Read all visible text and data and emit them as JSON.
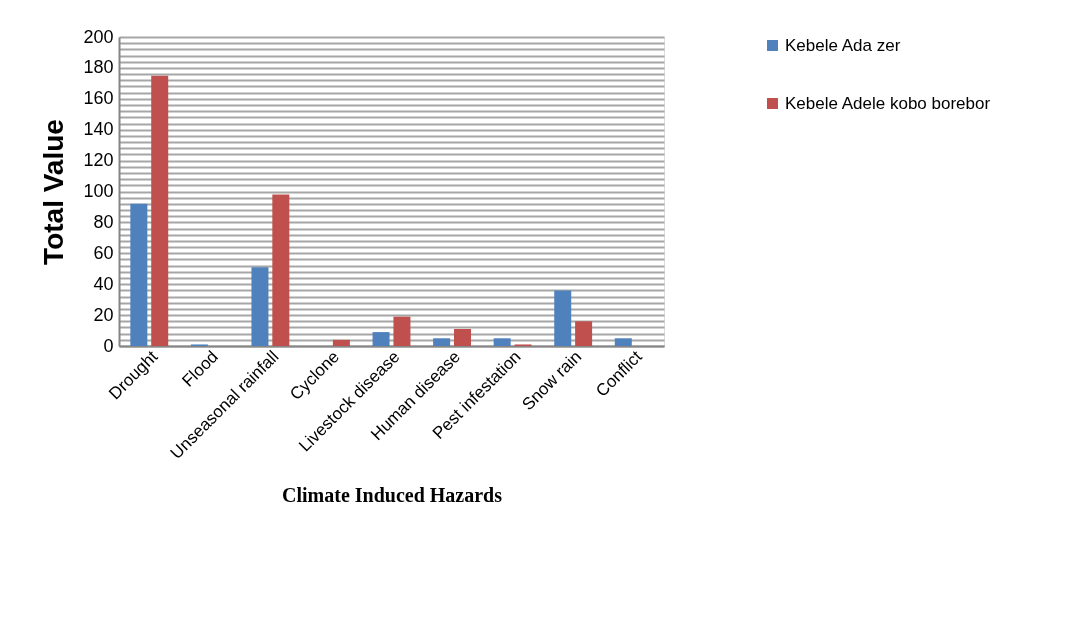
{
  "chart_data": {
    "type": "bar",
    "xlabel": "Climate Induced Hazards",
    "ylabel": "Total Value",
    "categories": [
      "Drought",
      "Flood",
      "Unseasonal rainfall",
      "Cyclone",
      "Livestock disease",
      "Human disease",
      "Pest infestation",
      "Snow rain",
      "Conflict"
    ],
    "series": [
      {
        "name": "Kebele Ada zer",
        "color": "#4f81bd",
        "values": [
          92,
          1,
          51,
          0,
          9,
          5,
          5,
          36,
          5
        ]
      },
      {
        "name": "Kebele Adele kobo borebor",
        "color": "#c0504d",
        "values": [
          175,
          0,
          98,
          4,
          19,
          11,
          1,
          16,
          0
        ]
      }
    ],
    "ylim": [
      0,
      200
    ],
    "yticks": [
      0,
      {
        "value": 4,
        "label": null
      },
      {
        "value": 8,
        "label": null
      },
      {
        "value": 12,
        "label": null
      },
      {
        "value": 16,
        "label": null
      },
      20,
      {
        "value": 24,
        "label": null
      },
      {
        "value": 28,
        "label": null
      },
      {
        "value": 32,
        "label": null
      },
      {
        "value": 36,
        "label": null
      },
      40,
      {
        "value": 44,
        "label": null
      },
      {
        "value": 48,
        "label": null
      },
      {
        "value": 52,
        "label": null
      },
      {
        "value": 56,
        "label": null
      },
      60,
      {
        "value": 64,
        "label": null
      },
      {
        "value": 68,
        "label": null
      },
      {
        "value": 72,
        "label": null
      },
      {
        "value": 76,
        "label": null
      },
      80,
      {
        "value": 84,
        "label": null
      },
      {
        "value": 88,
        "label": null
      },
      {
        "value": 92,
        "label": null
      },
      {
        "value": 96,
        "label": null
      },
      100,
      {
        "value": 104,
        "label": null
      },
      {
        "value": 108,
        "label": null
      },
      {
        "value": 112,
        "label": null
      },
      {
        "value": 116,
        "label": null
      },
      120,
      {
        "value": 124,
        "label": null
      },
      {
        "value": 128,
        "label": null
      },
      {
        "value": 132,
        "label": null
      },
      {
        "value": 136,
        "label": null
      },
      140,
      {
        "value": 144,
        "label": null
      },
      {
        "value": 148,
        "label": null
      },
      {
        "value": 152,
        "label": null
      },
      {
        "value": 156,
        "label": null
      },
      160,
      {
        "value": 164,
        "label": null
      },
      {
        "value": 168,
        "label": null
      },
      {
        "value": 172,
        "label": null
      },
      {
        "value": 176,
        "label": null
      },
      180,
      {
        "value": 184,
        "label": null
      },
      {
        "value": 188,
        "label": null
      },
      {
        "value": 192,
        "label": null
      },
      {
        "value": 196,
        "label": null
      },
      200
    ],
    "grid": "y",
    "legend": "right"
  }
}
